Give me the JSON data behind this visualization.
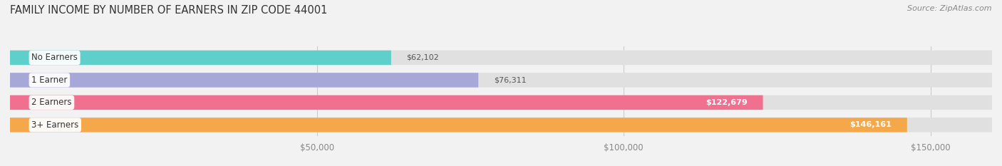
{
  "title": "FAMILY INCOME BY NUMBER OF EARNERS IN ZIP CODE 44001",
  "source": "Source: ZipAtlas.com",
  "categories": [
    "No Earners",
    "1 Earner",
    "2 Earners",
    "3+ Earners"
  ],
  "values": [
    62102,
    76311,
    122679,
    146161
  ],
  "bar_colors": [
    "#5ecfca",
    "#a8a8d8",
    "#f07090",
    "#f5a84a"
  ],
  "value_labels": [
    "$62,102",
    "$76,311",
    "$122,679",
    "$146,161"
  ],
  "label_inside": [
    false,
    false,
    true,
    true
  ],
  "xlim": [
    0,
    160000
  ],
  "xticks": [
    50000,
    100000,
    150000
  ],
  "xtick_labels": [
    "$50,000",
    "$100,000",
    "$150,000"
  ],
  "background_color": "#f2f2f2",
  "bar_bg_color": "#e0e0e0",
  "title_fontsize": 10.5,
  "source_fontsize": 8,
  "bar_height": 0.65,
  "bar_label_fontsize": 8,
  "category_fontsize": 8.5
}
